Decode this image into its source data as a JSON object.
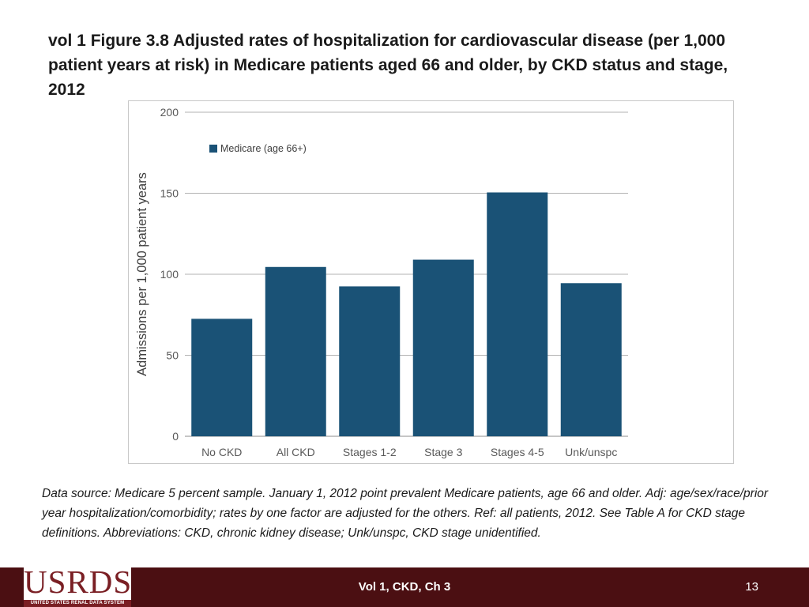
{
  "slide": {
    "title": "vol 1 Figure 3.8  Adjusted rates of hospitalization for cardiovascular disease (per 1,000 patient years at risk) in Medicare patients aged 66 and older, by CKD status and stage, 2012",
    "source_note": "Data source: Medicare 5 percent sample. January 1, 2012 point prevalent Medicare patients, age 66 and older. Adj: age/sex/race/prior year hospitalization/comorbidity; rates by one factor are adjusted for the others. Ref: all patients, 2012. See Table A for CKD stage definitions. Abbreviations: CKD, chronic kidney disease; Unk/unspc, CKD stage unidentified.",
    "footer_center": "Vol 1, CKD, Ch 3",
    "page_number": "13",
    "logo_text": "USRDS",
    "logo_subtext": "UNITED STATES RENAL DATA SYSTEM"
  },
  "colors": {
    "bar": "#1a5276",
    "footer": "#4b0f12",
    "logo": "#7a1f24"
  },
  "chart_data": {
    "type": "bar",
    "title": "",
    "xlabel": "",
    "ylabel": "Admissions per 1,000 patient years",
    "categories": [
      "No CKD",
      "All CKD",
      "Stages 1-2",
      "Stage 3",
      "Stages 4-5",
      "Unk/unspc"
    ],
    "series": [
      {
        "name": "Medicare (age 66+)",
        "values": [
          72.5,
          104.5,
          92.5,
          109,
          150.5,
          94.5
        ]
      }
    ],
    "ylim": [
      0,
      200
    ],
    "yticks": [
      0,
      50,
      100,
      150,
      200
    ],
    "grid": true,
    "legend_position": "top-left"
  }
}
